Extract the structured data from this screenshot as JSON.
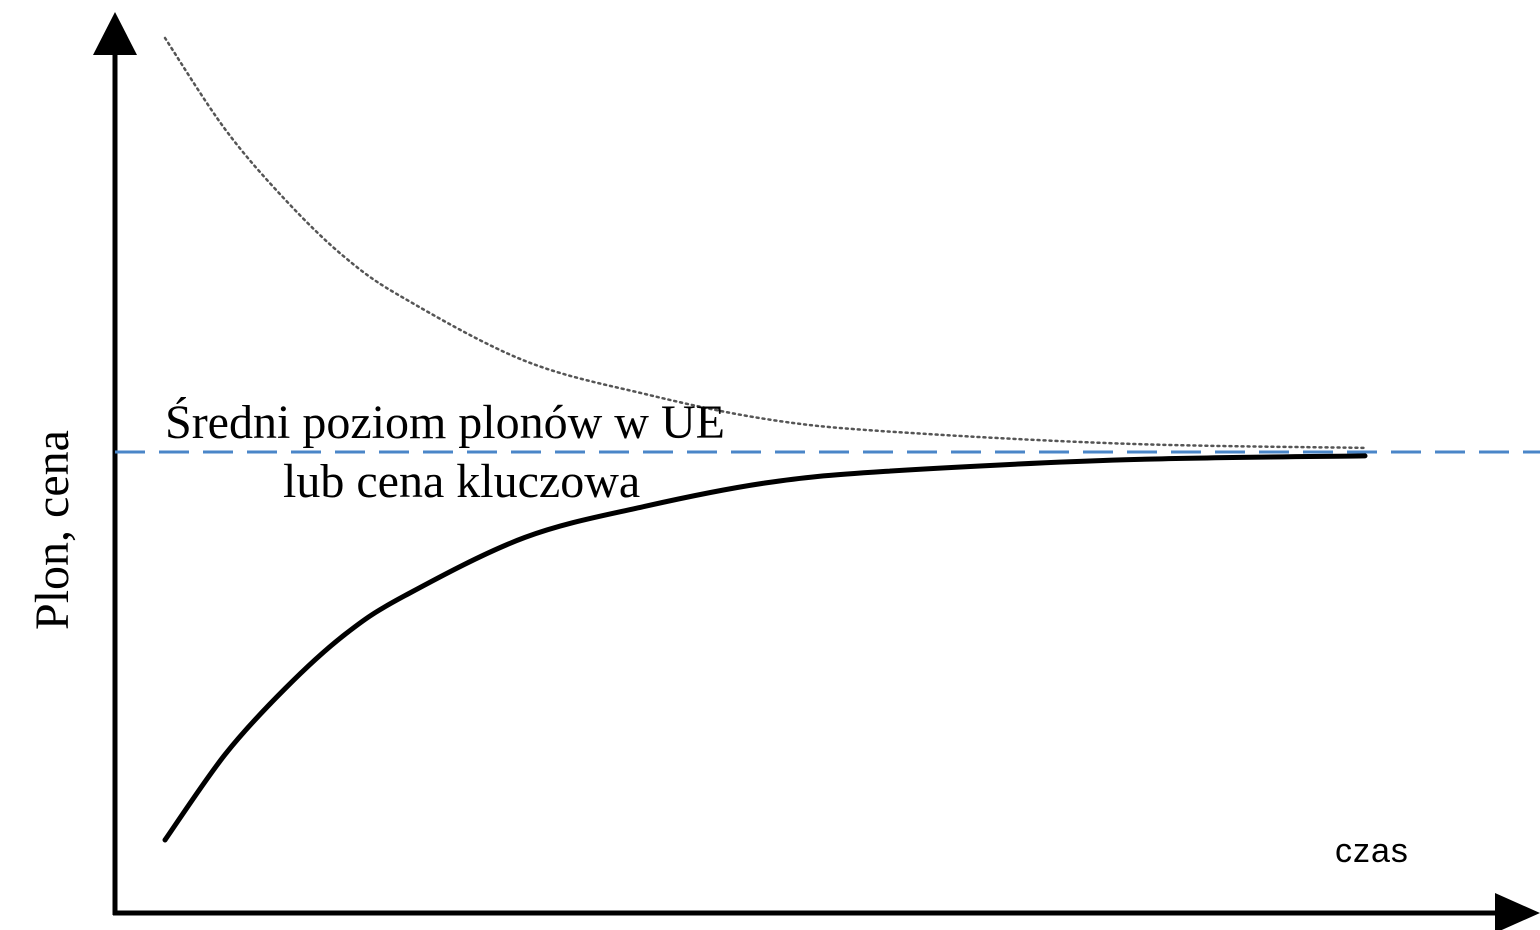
{
  "chart_data": {
    "type": "line",
    "title": "",
    "ylabel": "Plon, cena",
    "x_label_text": "czas",
    "reference_line": {
      "label_line1": "Średni poziom plonów  w UE",
      "label_line2": "lub cena kluczowa",
      "value": 0,
      "style": "dashed",
      "color": "#4a86c8"
    },
    "x": [
      0,
      0.5,
      1,
      1.5,
      2,
      3,
      4,
      5,
      6,
      8,
      10
    ],
    "series": [
      {
        "style": "dotted",
        "color": "#555555",
        "values": [
          1,
          0.78,
          0.61,
          0.47,
          0.37,
          0.22,
          0.14,
          0.08,
          0.05,
          0.02,
          0.01
        ]
      },
      {
        "style": "solid",
        "color": "#000000",
        "values": [
          -1,
          -0.78,
          -0.61,
          -0.47,
          -0.37,
          -0.22,
          -0.14,
          -0.08,
          -0.05,
          -0.02,
          -0.01
        ]
      }
    ],
    "xlim": [
      0,
      10
    ],
    "ylim": [
      -1,
      1
    ],
    "grid": false,
    "axis_arrows": true
  }
}
